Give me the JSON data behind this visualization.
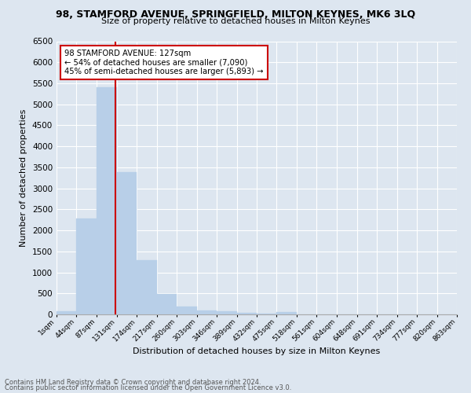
{
  "title": "98, STAMFORD AVENUE, SPRINGFIELD, MILTON KEYNES, MK6 3LQ",
  "subtitle": "Size of property relative to detached houses in Milton Keynes",
  "xlabel": "Distribution of detached houses by size in Milton Keynes",
  "ylabel": "Number of detached properties",
  "footnote1": "Contains HM Land Registry data © Crown copyright and database right 2024.",
  "footnote2": "Contains public sector information licensed under the Open Government Licence v3.0.",
  "bar_edges": [
    1,
    44,
    87,
    131,
    174,
    217,
    260,
    303,
    346,
    389,
    432,
    475,
    518,
    561,
    604,
    648,
    691,
    734,
    777,
    820,
    863
  ],
  "bar_heights": [
    75,
    2280,
    5400,
    3380,
    1290,
    480,
    195,
    100,
    70,
    30,
    10,
    60,
    0,
    0,
    0,
    0,
    0,
    0,
    0,
    0
  ],
  "tick_labels": [
    "1sqm",
    "44sqm",
    "87sqm",
    "131sqm",
    "174sqm",
    "217sqm",
    "260sqm",
    "303sqm",
    "346sqm",
    "389sqm",
    "432sqm",
    "475sqm",
    "518sqm",
    "561sqm",
    "604sqm",
    "648sqm",
    "691sqm",
    "734sqm",
    "777sqm",
    "820sqm",
    "863sqm"
  ],
  "bar_color": "#b8cfe8",
  "bar_edge_color": "#b8cfe8",
  "bg_color": "#dde6f0",
  "grid_color": "#ffffff",
  "vline_x": 127,
  "vline_color": "#cc0000",
  "annotation_text": "98 STAMFORD AVENUE: 127sqm\n← 54% of detached houses are smaller (7,090)\n45% of semi-detached houses are larger (5,893) →",
  "annotation_box_color": "#ffffff",
  "annotation_box_edge": "#cc0000",
  "ylim": [
    0,
    6500
  ],
  "yticks": [
    0,
    500,
    1000,
    1500,
    2000,
    2500,
    3000,
    3500,
    4000,
    4500,
    5000,
    5500,
    6000,
    6500
  ]
}
